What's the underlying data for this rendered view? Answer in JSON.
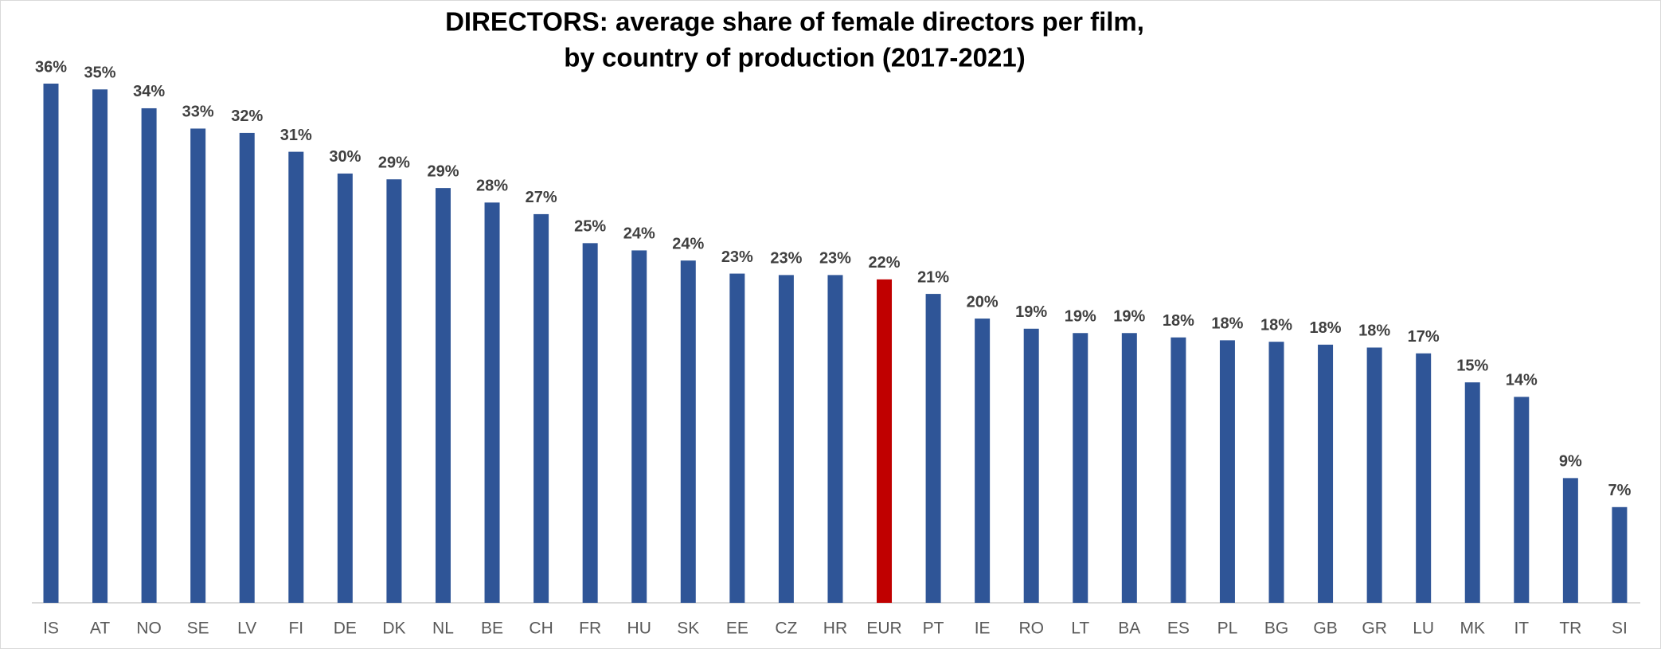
{
  "chart_data": {
    "type": "bar",
    "title": [
      "DIRECTORS: average share of female directors per film,",
      "by country of production (2017-2021)"
    ],
    "categories": [
      "IS",
      "AT",
      "NO",
      "SE",
      "LV",
      "FI",
      "DE",
      "DK",
      "NL",
      "BE",
      "CH",
      "FR",
      "HU",
      "SK",
      "EE",
      "CZ",
      "HR",
      "EUR",
      "PT",
      "IE",
      "RO",
      "LT",
      "BA",
      "ES",
      "PL",
      "BG",
      "GB",
      "GR",
      "LU",
      "MK",
      "IT",
      "TR",
      "SI"
    ],
    "values": [
      35.8,
      35.4,
      34.1,
      32.7,
      32.4,
      31.1,
      29.6,
      29.2,
      28.6,
      27.6,
      26.8,
      24.8,
      24.3,
      23.6,
      22.7,
      22.6,
      22.6,
      22.3,
      21.3,
      19.6,
      18.9,
      18.6,
      18.6,
      18.3,
      18.1,
      18.0,
      17.8,
      17.6,
      17.2,
      15.2,
      14.2,
      8.6,
      6.6
    ],
    "value_labels": [
      "36%",
      "35%",
      "34%",
      "33%",
      "32%",
      "31%",
      "30%",
      "29%",
      "29%",
      "28%",
      "27%",
      "25%",
      "24%",
      "24%",
      "23%",
      "23%",
      "23%",
      "22%",
      "21%",
      "20%",
      "19%",
      "19%",
      "19%",
      "18%",
      "18%",
      "18%",
      "18%",
      "18%",
      "17%",
      "15%",
      "14%",
      "9%",
      "7%"
    ],
    "colors": [
      "#2f5597",
      "#2f5597",
      "#2f5597",
      "#2f5597",
      "#2f5597",
      "#2f5597",
      "#2f5597",
      "#2f5597",
      "#2f5597",
      "#2f5597",
      "#2f5597",
      "#2f5597",
      "#2f5597",
      "#2f5597",
      "#2f5597",
      "#2f5597",
      "#2f5597",
      "#c00000",
      "#2f5597",
      "#2f5597",
      "#2f5597",
      "#2f5597",
      "#2f5597",
      "#2f5597",
      "#2f5597",
      "#2f5597",
      "#2f5597",
      "#2f5597",
      "#2f5597",
      "#2f5597",
      "#2f5597",
      "#2f5597",
      "#2f5597"
    ]
  }
}
